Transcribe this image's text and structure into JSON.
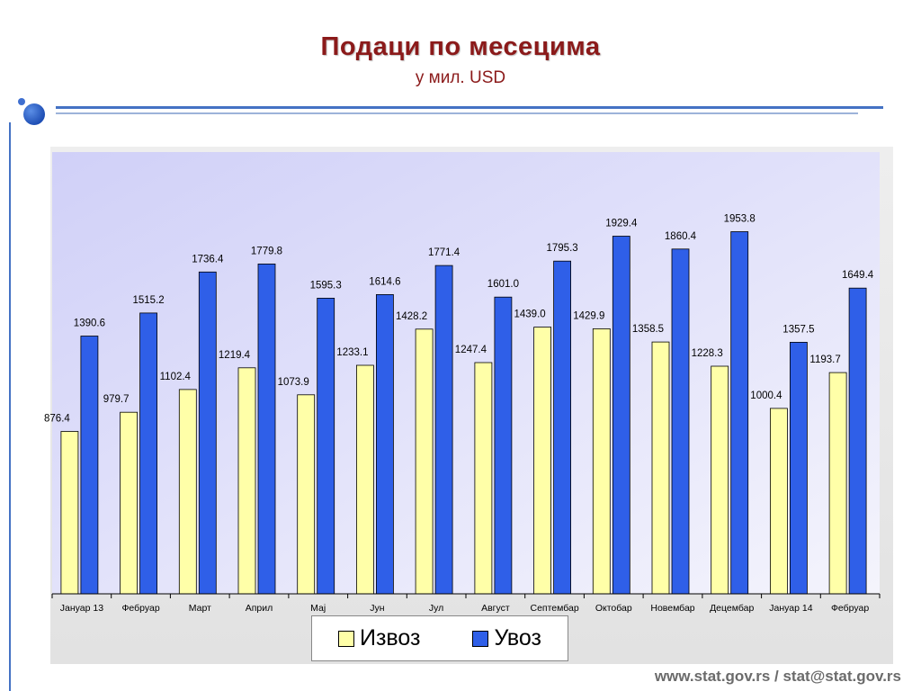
{
  "slide": {
    "title": "Подаци  по  месецима",
    "subtitle": "у мил. USD",
    "footer": "www.stat.gov.rs / stat@stat.gov.rs"
  },
  "colors": {
    "export": "#ffffa8",
    "import": "#2f5fe8",
    "title": "#8b1a1a",
    "accent": "#4472c4"
  },
  "legend": {
    "export_label": "Извоз",
    "import_label": "Увоз"
  },
  "chart_data": {
    "type": "bar",
    "title": "Подаци  по  месецима",
    "subtitle": "у мил. USD",
    "categories": [
      "Јануар 13",
      "Фебруар",
      "Март",
      "Април",
      "Мај",
      "Јун",
      "Јул",
      "Август",
      "Септембар",
      "Октобар",
      "Новембар",
      "Децембар",
      "Јануар 14",
      "Фебруар"
    ],
    "series": [
      {
        "name": "Извоз",
        "values": [
          876.4,
          979.7,
          1102.4,
          1219.4,
          1073.9,
          1233.1,
          1428.2,
          1247.4,
          1439.0,
          1429.9,
          1358.5,
          1228.3,
          1000.4,
          1193.7
        ]
      },
      {
        "name": "Увоз",
        "values": [
          1390.6,
          1515.2,
          1736.4,
          1779.8,
          1595.3,
          1614.6,
          1771.4,
          1601.0,
          1795.3,
          1929.4,
          1860.4,
          1953.8,
          1357.5,
          1649.4
        ]
      }
    ],
    "ylim": [
      0,
      2500
    ],
    "grid": false,
    "legend_position": "bottom",
    "value_labels": [
      "876.4",
      "979.7",
      "1102.4",
      "1219.4",
      "1073.9",
      "1233.1",
      "1428.2",
      "1247.4",
      "1439.0",
      "1429.9",
      "1358.5",
      "1228.3",
      "1000.4",
      "1193.7",
      "1390.6",
      "1515.2",
      "1736.4",
      "1779.8",
      "1595.3",
      "1614.6",
      "1771.4",
      "1601.0",
      "1795.3",
      "1929.4",
      "1860.4",
      "1953.8",
      "1357.5",
      "1649.4"
    ]
  }
}
